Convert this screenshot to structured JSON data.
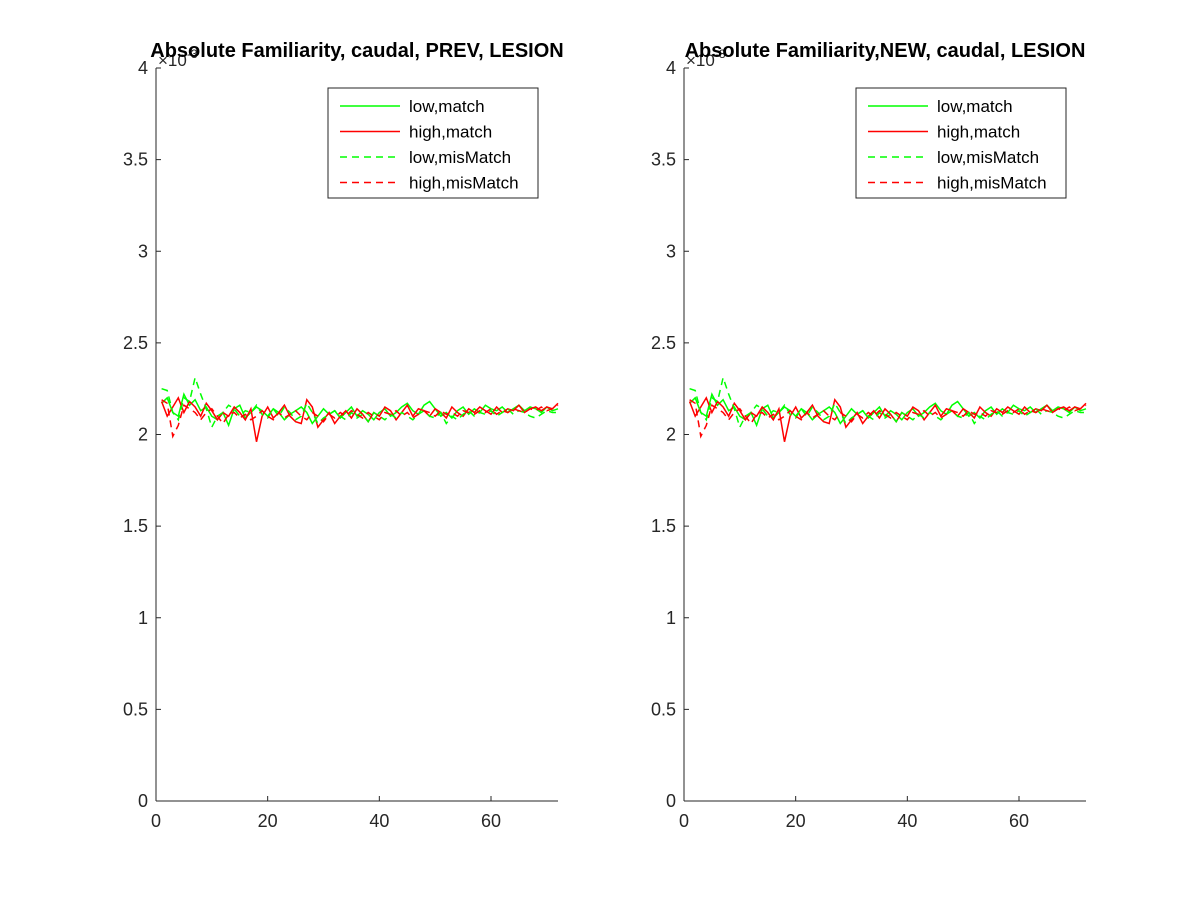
{
  "chart_data": [
    {
      "type": "line",
      "title": "Absolute Familiarity, caudal, PREV, LESION",
      "xlabel": "",
      "ylabel": "",
      "xlim": [
        0,
        72
      ],
      "ylim": [
        0,
        4
      ],
      "y_exponent_label": "×10",
      "y_exponent": "-3",
      "xticks": [
        "0",
        "20",
        "40",
        "60"
      ],
      "yticks": [
        "0",
        "0.5",
        "1",
        "1.5",
        "2",
        "2.5",
        "3",
        "3.5",
        "4"
      ],
      "grid": false,
      "legend_position": "top-right",
      "series": [
        {
          "name": "low,match",
          "color": "#00ff00",
          "dash": "solid",
          "values": [
            2.17,
            2.2,
            2.12,
            2.1,
            2.22,
            2.16,
            2.19,
            2.13,
            2.15,
            2.1,
            2.08,
            2.12,
            2.05,
            2.14,
            2.16,
            2.09,
            2.12,
            2.15,
            2.13,
            2.1,
            2.14,
            2.12,
            2.08,
            2.11,
            2.13,
            2.15,
            2.12,
            2.06,
            2.1,
            2.14,
            2.11,
            2.13,
            2.09,
            2.12,
            2.15,
            2.1,
            2.13,
            2.11,
            2.08,
            2.12,
            2.14,
            2.1,
            2.12,
            2.15,
            2.17,
            2.13,
            2.11,
            2.16,
            2.18,
            2.14,
            2.1,
            2.12,
            2.09,
            2.13,
            2.15,
            2.11,
            2.14,
            2.12,
            2.16,
            2.14,
            2.13,
            2.15,
            2.12,
            2.14,
            2.16,
            2.13,
            2.15,
            2.14,
            2.12,
            2.15,
            2.13,
            2.14
          ]
        },
        {
          "name": "high,match",
          "color": "#ff0000",
          "dash": "solid",
          "values": [
            2.18,
            2.1,
            2.15,
            2.2,
            2.12,
            2.18,
            2.15,
            2.1,
            2.17,
            2.13,
            2.08,
            2.12,
            2.1,
            2.15,
            2.12,
            2.08,
            2.14,
            1.96,
            2.1,
            2.15,
            2.09,
            2.12,
            2.16,
            2.1,
            2.07,
            2.06,
            2.19,
            2.15,
            2.04,
            2.08,
            2.12,
            2.06,
            2.1,
            2.13,
            2.09,
            2.14,
            2.11,
            2.07,
            2.12,
            2.1,
            2.15,
            2.13,
            2.08,
            2.12,
            2.16,
            2.1,
            2.14,
            2.13,
            2.1,
            2.14,
            2.12,
            2.09,
            2.15,
            2.12,
            2.1,
            2.14,
            2.12,
            2.15,
            2.13,
            2.11,
            2.15,
            2.12,
            2.14,
            2.13,
            2.16,
            2.12,
            2.14,
            2.15,
            2.13,
            2.15,
            2.14,
            2.17
          ]
        },
        {
          "name": "low,misMatch",
          "color": "#00ff00",
          "dash": "dashed",
          "values": [
            2.25,
            2.24,
            2.12,
            2.08,
            2.2,
            2.18,
            2.31,
            2.22,
            2.14,
            2.04,
            2.1,
            2.12,
            2.16,
            2.14,
            2.1,
            2.13,
            2.12,
            2.16,
            2.11,
            2.09,
            2.14,
            2.1,
            2.15,
            2.12,
            2.08,
            2.1,
            2.17,
            2.12,
            2.06,
            2.09,
            2.11,
            2.13,
            2.1,
            2.08,
            2.12,
            2.09,
            2.11,
            2.07,
            2.12,
            2.1,
            2.08,
            2.11,
            2.09,
            2.12,
            2.1,
            2.08,
            2.11,
            2.13,
            2.1,
            2.09,
            2.12,
            2.06,
            2.1,
            2.08,
            2.11,
            2.13,
            2.1,
            2.12,
            2.11,
            2.13,
            2.1,
            2.12,
            2.14,
            2.11,
            2.13,
            2.12,
            2.1,
            2.09,
            2.11,
            2.13,
            2.12,
            2.12
          ]
        },
        {
          "name": "high,misMatch",
          "color": "#ff0000",
          "dash": "dashed",
          "values": [
            2.19,
            2.17,
            1.99,
            2.05,
            2.16,
            2.14,
            2.12,
            2.08,
            2.12,
            2.14,
            2.1,
            2.06,
            2.11,
            2.12,
            2.09,
            2.11,
            2.08,
            2.1,
            2.13,
            2.1,
            2.08,
            2.12,
            2.09,
            2.11,
            2.13,
            2.1,
            2.08,
            2.12,
            2.1,
            2.07,
            2.11,
            2.09,
            2.12,
            2.1,
            2.13,
            2.11,
            2.09,
            2.12,
            2.1,
            2.08,
            2.12,
            2.11,
            2.13,
            2.1,
            2.12,
            2.09,
            2.11,
            2.13,
            2.12,
            2.1,
            2.13,
            2.11,
            2.12,
            2.1,
            2.13,
            2.12,
            2.11,
            2.13,
            2.12,
            2.14,
            2.11,
            2.13,
            2.12,
            2.14,
            2.13,
            2.12,
            2.14,
            2.13,
            2.15,
            2.13,
            2.14,
            2.16
          ]
        }
      ]
    },
    {
      "type": "line",
      "title": "Absolute Familiarity,NEW, caudal, LESION",
      "xlabel": "",
      "ylabel": "",
      "xlim": [
        0,
        72
      ],
      "ylim": [
        0,
        4
      ],
      "y_exponent_label": "×10",
      "y_exponent": "-3",
      "xticks": [
        "0",
        "20",
        "40",
        "60"
      ],
      "yticks": [
        "0",
        "0.5",
        "1",
        "1.5",
        "2",
        "2.5",
        "3",
        "3.5",
        "4"
      ],
      "grid": false,
      "legend_position": "top-right",
      "series": [
        {
          "name": "low,match",
          "color": "#00ff00",
          "dash": "solid",
          "values": [
            2.17,
            2.2,
            2.12,
            2.1,
            2.22,
            2.16,
            2.19,
            2.13,
            2.15,
            2.1,
            2.08,
            2.12,
            2.05,
            2.14,
            2.16,
            2.09,
            2.12,
            2.15,
            2.13,
            2.1,
            2.14,
            2.12,
            2.08,
            2.11,
            2.13,
            2.15,
            2.12,
            2.06,
            2.1,
            2.14,
            2.11,
            2.13,
            2.09,
            2.12,
            2.15,
            2.1,
            2.13,
            2.11,
            2.08,
            2.12,
            2.14,
            2.1,
            2.12,
            2.15,
            2.17,
            2.13,
            2.11,
            2.16,
            2.18,
            2.14,
            2.1,
            2.12,
            2.09,
            2.13,
            2.15,
            2.11,
            2.14,
            2.12,
            2.16,
            2.14,
            2.13,
            2.15,
            2.12,
            2.14,
            2.16,
            2.13,
            2.15,
            2.14,
            2.12,
            2.15,
            2.13,
            2.14
          ]
        },
        {
          "name": "high,match",
          "color": "#ff0000",
          "dash": "solid",
          "values": [
            2.18,
            2.1,
            2.15,
            2.2,
            2.12,
            2.18,
            2.15,
            2.1,
            2.17,
            2.13,
            2.08,
            2.12,
            2.1,
            2.15,
            2.12,
            2.08,
            2.14,
            1.96,
            2.1,
            2.15,
            2.09,
            2.12,
            2.16,
            2.1,
            2.07,
            2.06,
            2.19,
            2.15,
            2.04,
            2.08,
            2.12,
            2.06,
            2.1,
            2.13,
            2.09,
            2.14,
            2.11,
            2.07,
            2.12,
            2.1,
            2.15,
            2.13,
            2.08,
            2.12,
            2.16,
            2.1,
            2.14,
            2.13,
            2.1,
            2.14,
            2.12,
            2.09,
            2.15,
            2.12,
            2.1,
            2.14,
            2.12,
            2.15,
            2.13,
            2.11,
            2.15,
            2.12,
            2.14,
            2.13,
            2.16,
            2.12,
            2.14,
            2.15,
            2.13,
            2.15,
            2.14,
            2.17
          ]
        },
        {
          "name": "low,misMatch",
          "color": "#00ff00",
          "dash": "dashed",
          "values": [
            2.25,
            2.24,
            2.12,
            2.08,
            2.2,
            2.18,
            2.31,
            2.22,
            2.14,
            2.04,
            2.1,
            2.12,
            2.16,
            2.14,
            2.1,
            2.13,
            2.12,
            2.16,
            2.11,
            2.09,
            2.14,
            2.1,
            2.15,
            2.12,
            2.08,
            2.1,
            2.17,
            2.12,
            2.06,
            2.09,
            2.11,
            2.13,
            2.1,
            2.08,
            2.12,
            2.09,
            2.11,
            2.07,
            2.12,
            2.1,
            2.08,
            2.11,
            2.09,
            2.12,
            2.1,
            2.08,
            2.11,
            2.13,
            2.1,
            2.09,
            2.12,
            2.06,
            2.1,
            2.08,
            2.11,
            2.13,
            2.1,
            2.12,
            2.11,
            2.13,
            2.1,
            2.12,
            2.14,
            2.11,
            2.13,
            2.12,
            2.1,
            2.09,
            2.11,
            2.13,
            2.12,
            2.12
          ]
        },
        {
          "name": "high,misMatch",
          "color": "#ff0000",
          "dash": "dashed",
          "values": [
            2.19,
            2.17,
            1.99,
            2.05,
            2.16,
            2.14,
            2.12,
            2.08,
            2.12,
            2.14,
            2.1,
            2.06,
            2.11,
            2.12,
            2.09,
            2.11,
            2.08,
            2.1,
            2.13,
            2.1,
            2.08,
            2.12,
            2.09,
            2.11,
            2.13,
            2.1,
            2.08,
            2.12,
            2.1,
            2.07,
            2.11,
            2.09,
            2.12,
            2.1,
            2.13,
            2.11,
            2.09,
            2.12,
            2.1,
            2.08,
            2.12,
            2.11,
            2.13,
            2.1,
            2.12,
            2.09,
            2.11,
            2.13,
            2.12,
            2.1,
            2.13,
            2.11,
            2.12,
            2.1,
            2.13,
            2.12,
            2.11,
            2.13,
            2.12,
            2.14,
            2.11,
            2.13,
            2.12,
            2.14,
            2.13,
            2.12,
            2.14,
            2.13,
            2.15,
            2.13,
            2.14,
            2.16
          ]
        }
      ]
    }
  ]
}
